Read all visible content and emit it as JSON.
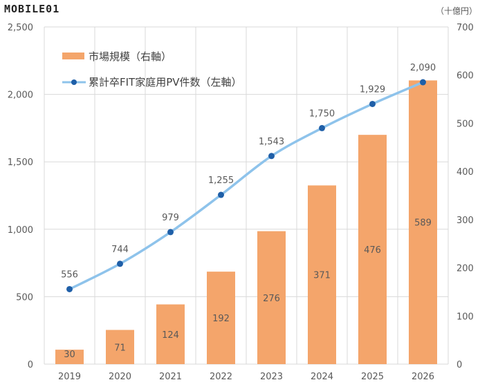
{
  "watermark": "MOBILE01",
  "chart_data": {
    "type": "bar+line",
    "categories": [
      "2019",
      "2020",
      "2021",
      "2022",
      "2023",
      "2024",
      "2025",
      "2026"
    ],
    "series": [
      {
        "name": "市場規模（右軸）",
        "type": "bar",
        "axis": "right",
        "color": "#F4A56B",
        "values": [
          30,
          71,
          124,
          192,
          276,
          371,
          476,
          589
        ]
      },
      {
        "name": "累計卒FIT家庭用PV件数（左軸）",
        "type": "line",
        "axis": "left",
        "color": "#8EC3EB",
        "marker_color": "#1F5FA8",
        "values": [
          556,
          744,
          979,
          1255,
          1543,
          1750,
          1929,
          2090
        ],
        "labels": [
          "556",
          "744",
          "979",
          "1,255",
          "1,543",
          "1,750",
          "1,929",
          "2,090"
        ]
      }
    ],
    "left_axis": {
      "ylim": [
        0,
        2500
      ],
      "ticks": [
        "0",
        "500",
        "1,000",
        "1,500",
        "2,000",
        "2,500"
      ]
    },
    "right_axis": {
      "ylim": [
        0,
        700
      ],
      "unit": "（十億円）",
      "ticks": [
        "0",
        "100",
        "200",
        "300",
        "400",
        "500",
        "600",
        "700"
      ]
    },
    "grid": true,
    "legend_position": "top-left"
  }
}
